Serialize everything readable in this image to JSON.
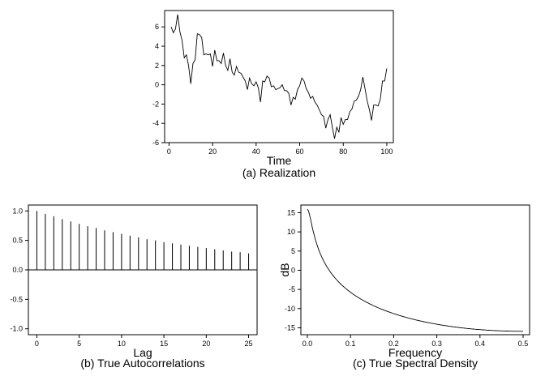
{
  "chart_data": [
    {
      "type": "line",
      "caption": "(a) Realization",
      "xlabel": "Time",
      "ylabel": "",
      "xlim": [
        -2,
        103
      ],
      "ylim": [
        -6,
        7.7
      ],
      "xticks": [
        0,
        20,
        40,
        60,
        80,
        100
      ],
      "yticks": [
        -6,
        -4,
        -2,
        0,
        2,
        4,
        6
      ],
      "grid": false,
      "x": [
        1,
        2,
        3,
        4,
        5,
        6,
        7,
        8,
        9,
        10,
        11,
        12,
        13,
        14,
        15,
        16,
        17,
        18,
        19,
        20,
        21,
        22,
        23,
        24,
        25,
        26,
        27,
        28,
        29,
        30,
        31,
        32,
        33,
        34,
        35,
        36,
        37,
        38,
        39,
        40,
        41,
        42,
        43,
        44,
        45,
        46,
        47,
        48,
        49,
        50,
        51,
        52,
        53,
        54,
        55,
        56,
        57,
        58,
        59,
        60,
        61,
        62,
        63,
        64,
        65,
        66,
        67,
        68,
        69,
        70,
        71,
        72,
        73,
        74,
        75,
        76,
        77,
        78,
        79,
        80,
        81,
        82,
        83,
        84,
        85,
        86,
        87,
        88,
        89,
        90,
        91,
        92,
        93,
        94,
        95,
        96,
        97,
        98,
        99,
        100
      ],
      "y": [
        6.0,
        5.4,
        5.8,
        7.3,
        5.5,
        4.6,
        2.8,
        3.1,
        2.0,
        0.1,
        2.2,
        2.6,
        5.3,
        5.2,
        4.9,
        3.1,
        3.2,
        3.1,
        3.2,
        1.9,
        3.6,
        2.5,
        2.5,
        2.2,
        3.3,
        2.0,
        1.5,
        2.7,
        1.3,
        1.0,
        1.9,
        1.3,
        1.2,
        0.8,
        0.4,
        -0.5,
        0.7,
        0.1,
        -0.1,
        0.3,
        -0.3,
        -1.8,
        0.4,
        0.3,
        0.9,
        0.7,
        -0.2,
        -0.1,
        -0.5,
        -0.4,
        -0.3,
        0.0,
        -0.6,
        -0.6,
        -0.9,
        -2.1,
        -1.3,
        -1.5,
        -0.5,
        -0.1,
        0.7,
        0.4,
        -0.4,
        -0.8,
        -1.4,
        -1.2,
        -1.8,
        -2.1,
        -2.6,
        -3.1,
        -3.3,
        -4.5,
        -3.6,
        -3.1,
        -4.4,
        -5.6,
        -4.4,
        -4.9,
        -3.4,
        -4.1,
        -3.6,
        -3.6,
        -2.8,
        -2.5,
        -1.7,
        -1.6,
        -1.2,
        -0.5,
        0.8,
        -0.4,
        -1.7,
        -2.6,
        -3.7,
        -2.1,
        -2.1,
        -2.2,
        -1.5,
        0.4,
        0.4,
        1.7
      ]
    },
    {
      "type": "bar",
      "caption": "(b) True Autocorrelations",
      "xlabel": "Lag",
      "ylabel": "",
      "xlim": [
        -1,
        26
      ],
      "ylim": [
        -1.1,
        1.1
      ],
      "xticks": [
        0,
        5,
        10,
        15,
        20,
        25
      ],
      "yticks": [
        -1.0,
        -0.5,
        0.0,
        0.5,
        1.0
      ],
      "ytick_labels": [
        "-1.0",
        "-0.5",
        "0.0",
        "0.5",
        "1.0"
      ],
      "grid": false,
      "lags": [
        0,
        1,
        2,
        3,
        4,
        5,
        6,
        7,
        8,
        9,
        10,
        11,
        12,
        13,
        14,
        15,
        16,
        17,
        18,
        19,
        20,
        21,
        22,
        23,
        24,
        25
      ],
      "values": [
        1.0,
        0.95,
        0.91,
        0.86,
        0.82,
        0.78,
        0.74,
        0.71,
        0.67,
        0.64,
        0.61,
        0.58,
        0.55,
        0.52,
        0.5,
        0.47,
        0.45,
        0.43,
        0.41,
        0.39,
        0.37,
        0.35,
        0.33,
        0.31,
        0.3,
        0.28
      ]
    },
    {
      "type": "line",
      "caption": "(c) True Spectral Density",
      "xlabel": "Frequency",
      "ylabel": "dB",
      "xlim": [
        -0.015,
        0.515
      ],
      "ylim": [
        -16.8,
        17.0
      ],
      "xticks": [
        0.0,
        0.1,
        0.2,
        0.3,
        0.4,
        0.5
      ],
      "xtick_labels": [
        "0.0",
        "0.1",
        "0.2",
        "0.3",
        "0.4",
        "0.5"
      ],
      "yticks": [
        -15,
        -10,
        -5,
        0,
        5,
        10,
        15
      ],
      "grid": false,
      "phi": 0.95
    }
  ]
}
